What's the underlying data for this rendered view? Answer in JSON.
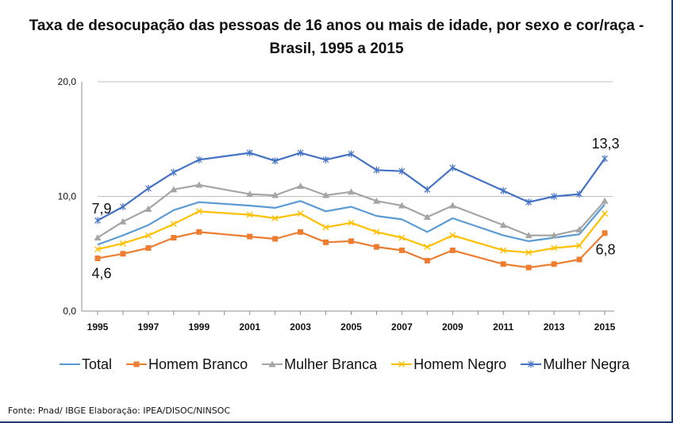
{
  "chart_data": {
    "type": "line",
    "title": "Taxa de desocupação das pessoas de 16 anos ou mais de idade, por sexo e cor/raça - Brasil, 1995 a 2015",
    "x": [
      1995,
      1996,
      1997,
      1998,
      1999,
      2001,
      2002,
      2003,
      2004,
      2005,
      2006,
      2007,
      2008,
      2009,
      2011,
      2012,
      2013,
      2014,
      2015
    ],
    "x_tick_labels": [
      "1995",
      "1997",
      "1999",
      "2001",
      "2003",
      "2005",
      "2007",
      "2009",
      "2011",
      "2013",
      "2015"
    ],
    "y_tick_labels": [
      "20,0",
      "10,0",
      "0,0"
    ],
    "ylim": [
      0,
      20
    ],
    "grid": true,
    "series": [
      {
        "name": "Total",
        "color": "#5b9bd5",
        "marker": "none",
        "values": [
          5.8,
          6.6,
          7.5,
          8.8,
          9.5,
          9.2,
          9.0,
          9.6,
          8.7,
          9.1,
          8.3,
          8.0,
          6.9,
          8.1,
          6.6,
          6.1,
          6.4,
          6.7,
          9.3
        ]
      },
      {
        "name": "Homem Branco",
        "color": "#ed7d31",
        "marker": "square",
        "values": [
          4.6,
          5.0,
          5.5,
          6.4,
          6.9,
          6.5,
          6.3,
          6.9,
          6.0,
          6.1,
          5.6,
          5.3,
          4.4,
          5.3,
          4.1,
          3.8,
          4.1,
          4.5,
          6.8
        ]
      },
      {
        "name": "Mulher Branca",
        "color": "#a5a5a5",
        "marker": "triangle",
        "values": [
          6.4,
          7.8,
          8.9,
          10.6,
          11.0,
          10.2,
          10.1,
          10.9,
          10.1,
          10.4,
          9.6,
          9.2,
          8.2,
          9.2,
          7.5,
          6.6,
          6.6,
          7.1,
          9.6
        ]
      },
      {
        "name": "Homem Negro",
        "color": "#ffc000",
        "marker": "x",
        "values": [
          5.4,
          5.9,
          6.6,
          7.6,
          8.7,
          8.4,
          8.1,
          8.5,
          7.3,
          7.7,
          6.9,
          6.4,
          5.6,
          6.6,
          5.3,
          5.1,
          5.5,
          5.7,
          8.5
        ]
      },
      {
        "name": "Mulher Negra",
        "color": "#4472c4",
        "marker": "star",
        "values": [
          7.9,
          9.1,
          10.7,
          12.1,
          13.2,
          13.8,
          13.1,
          13.8,
          13.2,
          13.7,
          12.3,
          12.2,
          10.6,
          12.5,
          10.5,
          9.5,
          10.0,
          10.2,
          13.3
        ]
      }
    ],
    "annotations": [
      {
        "text": "7,9",
        "series": "Mulher Negra",
        "x": 1995,
        "y": 7.9
      },
      {
        "text": "4,6",
        "series": "Homem Branco",
        "x": 1995,
        "y": 4.6
      },
      {
        "text": "13,3",
        "series": "Mulher Negra",
        "x": 2015,
        "y": 13.3
      },
      {
        "text": "6,8",
        "series": "Homem Branco",
        "x": 2015,
        "y": 6.8
      }
    ],
    "legend_position": "bottom"
  },
  "source": "Fonte: Pnad/ IBGE Elaboração: IPEA/DISOC/NINSOC"
}
